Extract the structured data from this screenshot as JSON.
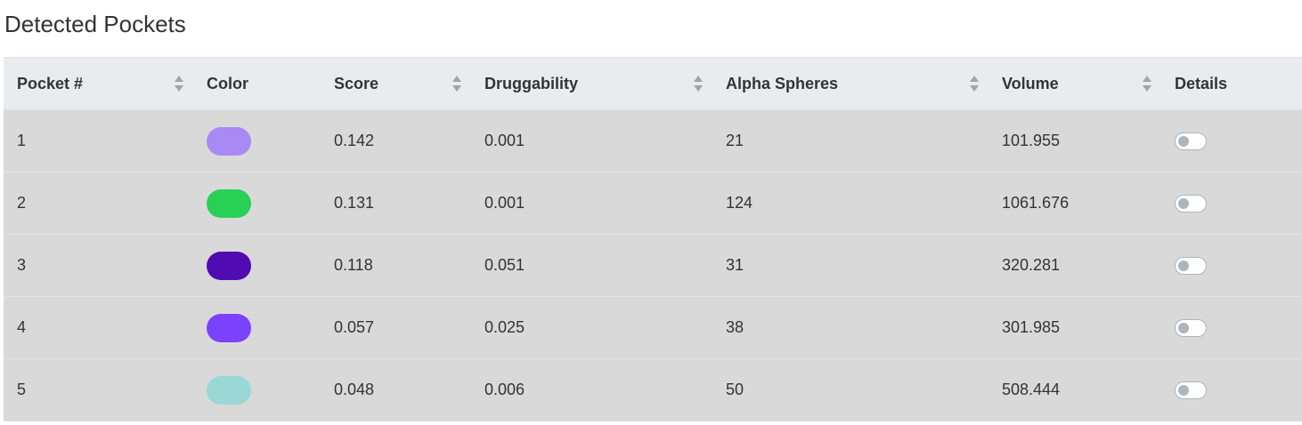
{
  "page": {
    "title": "Detected Pockets"
  },
  "table": {
    "headers": [
      {
        "label": "Pocket #",
        "sortable": true
      },
      {
        "label": "Color",
        "sortable": false
      },
      {
        "label": "Score",
        "sortable": true
      },
      {
        "label": "Druggability",
        "sortable": true
      },
      {
        "label": "Alpha Spheres",
        "sortable": true
      },
      {
        "label": "Volume",
        "sortable": true
      },
      {
        "label": "Details",
        "sortable": false
      }
    ],
    "rows": [
      {
        "pocket": "1",
        "color": "#a98af4",
        "score": "0.142",
        "druggability": "0.001",
        "alpha_spheres": "21",
        "volume": "101.955",
        "details_on": false
      },
      {
        "pocket": "2",
        "color": "#28d056",
        "score": "0.131",
        "druggability": "0.001",
        "alpha_spheres": "124",
        "volume": "1061.676",
        "details_on": false
      },
      {
        "pocket": "3",
        "color": "#500cb0",
        "score": "0.118",
        "druggability": "0.051",
        "alpha_spheres": "31",
        "volume": "320.281",
        "details_on": false
      },
      {
        "pocket": "4",
        "color": "#7b42fb",
        "score": "0.057",
        "druggability": "0.025",
        "alpha_spheres": "38",
        "volume": "301.985",
        "details_on": false
      },
      {
        "pocket": "5",
        "color": "#99d8d5",
        "score": "0.048",
        "druggability": "0.006",
        "alpha_spheres": "50",
        "volume": "508.444",
        "details_on": false
      }
    ]
  },
  "icons": {
    "sort": "sort-both-icon",
    "toggle": "switch-toggle-icon"
  },
  "colors": {
    "header_bg": "#e9ecef",
    "row_bg": "#d9d9d9",
    "toggle_border": "#adb5bd"
  }
}
